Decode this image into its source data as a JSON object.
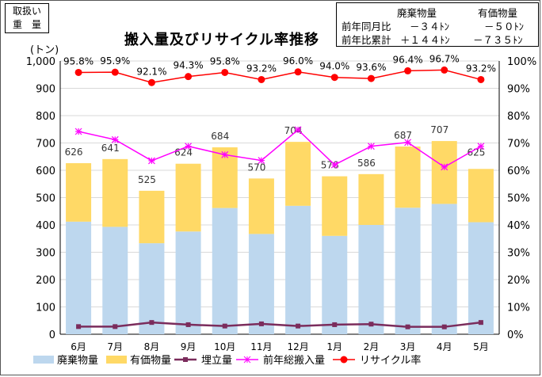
{
  "corner_label": [
    "取扱い",
    "重　量"
  ],
  "title": "搬入量及びリサイクル率推移",
  "summary": {
    "headers": [
      "廃棄物量",
      "有価物量"
    ],
    "rows": [
      {
        "label": "前年同月比",
        "waste": "－３４ﾄﾝ",
        "valuable": "－５０ﾄﾝ"
      },
      {
        "label": "前年比累計",
        "waste": "＋１４４ﾄﾝ",
        "valuable": "－７３５ﾄﾝ"
      }
    ]
  },
  "colors": {
    "waste": "#bdd7ee",
    "valuable": "#ffd966",
    "landfill": "#7b2c5c",
    "prev_total": "#ff00ff",
    "recycle_rate": "#ff0000"
  },
  "chart_data": {
    "type": "bar",
    "y_unit_label": "(トン)",
    "categories": [
      "6月",
      "7月",
      "8月",
      "9月",
      "10月",
      "11月",
      "12月",
      "1月",
      "2月",
      "3月",
      "4月",
      "5月"
    ],
    "ylim": [
      0,
      1000
    ],
    "yticks": [
      "0",
      "100",
      "200",
      "300",
      "400",
      "500",
      "600",
      "700",
      "800",
      "900",
      "1,000"
    ],
    "y2lim": [
      0,
      100
    ],
    "y2ticks": [
      "0%",
      "10%",
      "20%",
      "30%",
      "40%",
      "50%",
      "60%",
      "70%",
      "80%",
      "90%",
      "100%"
    ],
    "totals": [
      626,
      641,
      525,
      624,
      684,
      570,
      704,
      578,
      586,
      687,
      707,
      625
    ],
    "series": [
      {
        "name": "廃棄物量",
        "kind": "stacked-bar",
        "values": [
          412,
          393,
          333,
          376,
          462,
          367,
          470,
          360,
          400,
          463,
          477,
          410
        ]
      },
      {
        "name": "有価物量",
        "kind": "stacked-bar",
        "values": [
          214,
          248,
          192,
          248,
          222,
          203,
          234,
          218,
          186,
          224,
          230,
          195
        ]
      },
      {
        "name": "埋立量",
        "kind": "line",
        "values": [
          28,
          28,
          43,
          35,
          30,
          38,
          30,
          35,
          37,
          27,
          27,
          43
        ]
      },
      {
        "name": "前年総搬入量",
        "kind": "line",
        "values": [
          742,
          712,
          635,
          688,
          657,
          636,
          748,
          620,
          688,
          702,
          612,
          688
        ]
      },
      {
        "name": "リサイクル率",
        "kind": "line-secondary-axis",
        "values": [
          95.8,
          95.9,
          92.1,
          94.3,
          95.8,
          93.2,
          96.0,
          94.0,
          93.6,
          96.4,
          96.7,
          93.2
        ],
        "labels": [
          "95.8%",
          "95.9%",
          "92.1%",
          "94.3%",
          "95.8%",
          "93.2%",
          "96.0%",
          "94.0%",
          "93.6%",
          "96.4%",
          "96.7%",
          "93.2%"
        ]
      }
    ],
    "legend_position": "bottom",
    "grid": true
  }
}
